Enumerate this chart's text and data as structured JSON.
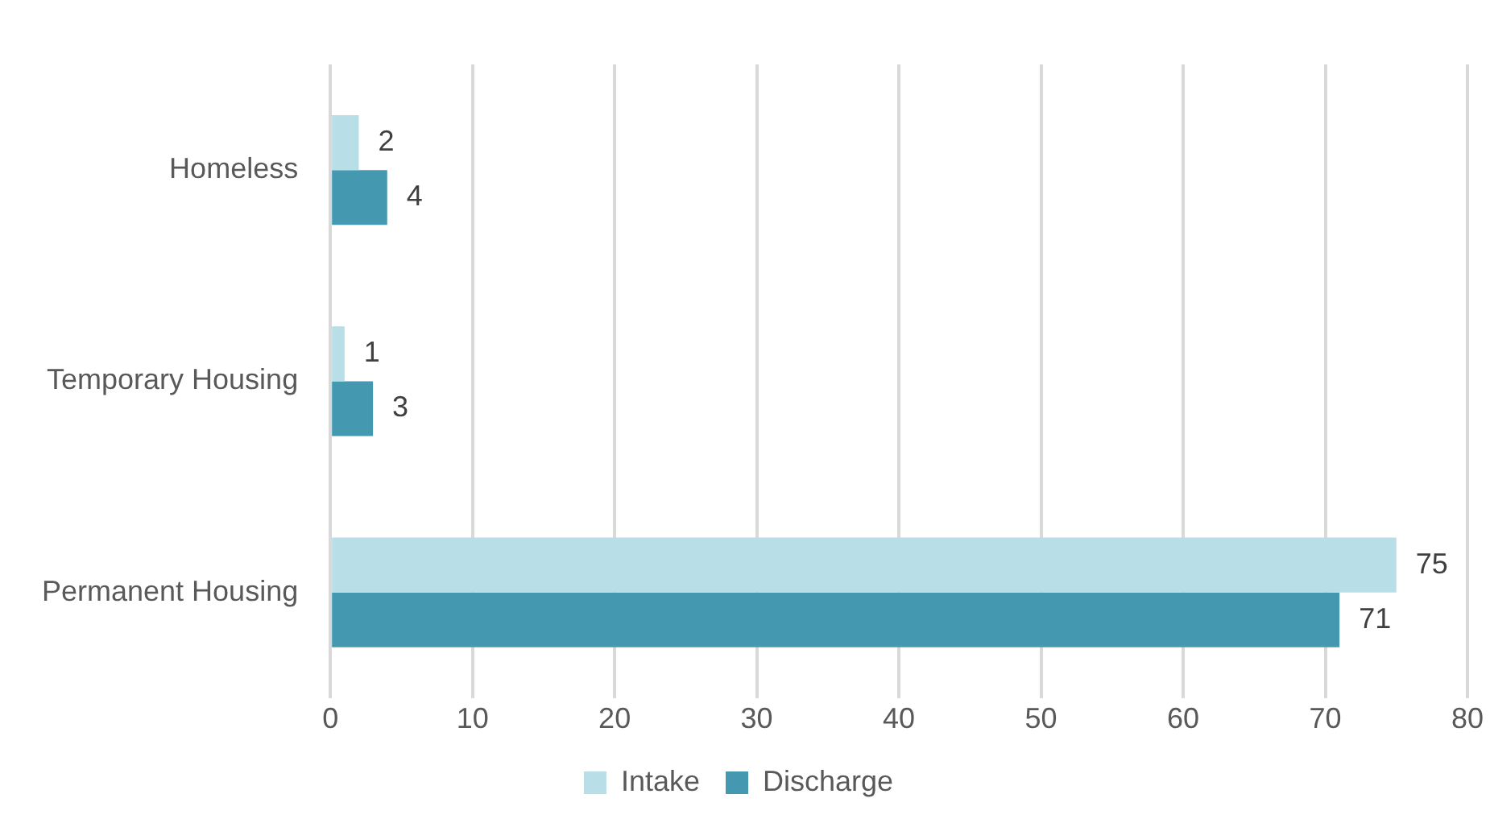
{
  "chart_data": {
    "type": "bar",
    "orientation": "horizontal",
    "categories": [
      "Homeless",
      "Temporary Housing",
      "Permanent Housing"
    ],
    "series": [
      {
        "name": "Intake",
        "color": "#b8dee8",
        "values": [
          2,
          1,
          75
        ]
      },
      {
        "name": "Discharge",
        "color": "#4499b0",
        "values": [
          4,
          3,
          71
        ]
      }
    ],
    "xlim": [
      0,
      80
    ],
    "xticks": [
      0,
      10,
      20,
      30,
      40,
      50,
      60,
      70,
      80
    ],
    "grid": "x",
    "legend": "bottom",
    "data_labels": true
  }
}
